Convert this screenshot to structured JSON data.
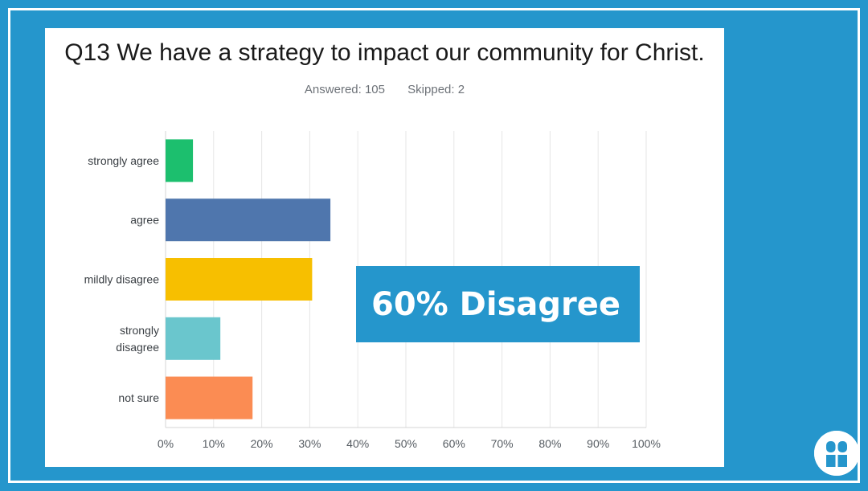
{
  "slide": {
    "frame_color": "#2596cc",
    "callout_text": "60% Disagree",
    "logo_icon": "church-door-icon"
  },
  "chart_data": {
    "type": "bar",
    "orientation": "horizontal",
    "title": "Q13 We have a strategy to impact our community for Christ.",
    "answered": "Answered: 105",
    "skipped": "Skipped: 2",
    "categories": [
      "strongly agree",
      "agree",
      "mildly disagree",
      "strongly disagree",
      "not sure"
    ],
    "category_label_lines": [
      [
        "strongly agree"
      ],
      [
        "agree"
      ],
      [
        "mildly disagree"
      ],
      [
        "strongly",
        "disagree"
      ],
      [
        "not sure"
      ]
    ],
    "values": [
      5.7,
      34.3,
      30.5,
      11.4,
      18.1
    ],
    "colors": [
      "#1cbf6e",
      "#4f76ad",
      "#f7bf00",
      "#6ac6cd",
      "#fb8c53"
    ],
    "xlim": [
      0,
      100
    ],
    "x_ticks": [
      "0%",
      "10%",
      "20%",
      "30%",
      "40%",
      "50%",
      "60%",
      "70%",
      "80%",
      "90%",
      "100%"
    ],
    "grid": true
  }
}
